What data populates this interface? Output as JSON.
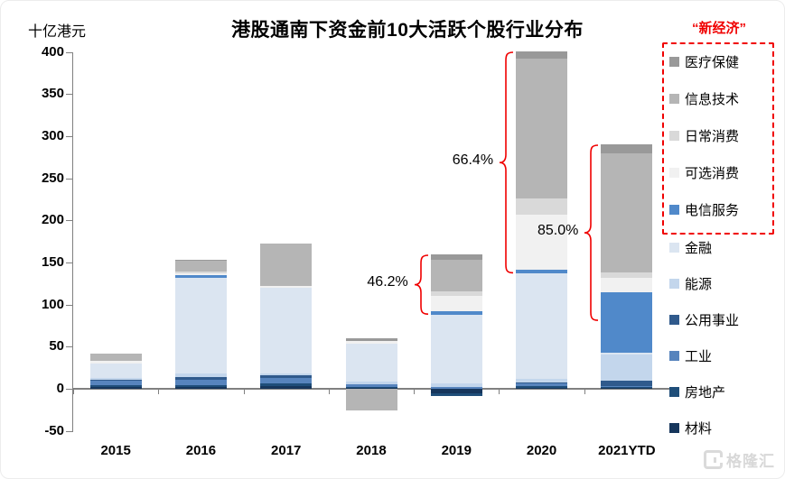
{
  "header": {
    "title": "港股通南下资金前10大活跃个股行业分布",
    "unit_label": "十亿港元"
  },
  "legend": {
    "new_economy_label": "“新经济”",
    "new_economy_items": [
      "医疗保健",
      "信息技术",
      "日常消费",
      "可选消费",
      "电信服务"
    ],
    "other_items": [
      "金融",
      "能源",
      "公用事业",
      "工业",
      "房地产",
      "材料"
    ],
    "accent_red": "#f00000"
  },
  "watermark": {
    "text": "格隆汇"
  },
  "chart_data": {
    "type": "bar",
    "stacked": true,
    "title": "港股通南下资金前10大活跃个股行业分布",
    "ylabel": "十亿港元",
    "ylim": [
      -50,
      400
    ],
    "ytick_step": 50,
    "yticks": [
      400,
      350,
      300,
      250,
      200,
      150,
      100,
      50,
      0,
      -50
    ],
    "grid": false,
    "legend_position": "right",
    "categories": [
      "2015",
      "2016",
      "2017",
      "2018",
      "2019",
      "2020",
      "2021YTD"
    ],
    "series": [
      {
        "name": "医疗保健",
        "color": "#999999",
        "values": [
          0,
          1,
          0,
          3,
          7,
          9,
          10
        ]
      },
      {
        "name": "信息技术",
        "color": "#b5b5b5",
        "values": [
          9,
          13,
          51,
          -26,
          37,
          166,
          142
        ]
      },
      {
        "name": "日常消费",
        "color": "#d9d9d9",
        "values": [
          0,
          2,
          0,
          0,
          6,
          19,
          6
        ]
      },
      {
        "name": "可选消费",
        "color": "#f1f1f1",
        "values": [
          3,
          2,
          2,
          3,
          18,
          66,
          17
        ]
      },
      {
        "name": "电信服务",
        "color": "#5089ca",
        "values": [
          0,
          3,
          0,
          0,
          4,
          4,
          72
        ]
      },
      {
        "name": "金融",
        "color": "#dbe5f1",
        "values": [
          17,
          114,
          102,
          45,
          82,
          125,
          2
        ]
      },
      {
        "name": "能源",
        "color": "#c3d6ec",
        "values": [
          2,
          4,
          2,
          4,
          4,
          5,
          31
        ]
      },
      {
        "name": "公用事业",
        "color": "#305a8c",
        "values": [
          1,
          3,
          3,
          0,
          0,
          1,
          7
        ]
      },
      {
        "name": "工业",
        "color": "#5784bd",
        "values": [
          6,
          7,
          7,
          3,
          2,
          3,
          1
        ]
      },
      {
        "name": "房地产",
        "color": "#1f4e79",
        "values": [
          2,
          2,
          3,
          1,
          -4,
          2,
          1
        ]
      },
      {
        "name": "材料",
        "color": "#16365c",
        "values": [
          2,
          2,
          3,
          1,
          -5,
          1,
          1
        ]
      }
    ],
    "annotations": [
      {
        "label": "46.2%",
        "category": "2019",
        "from_value": 160,
        "to_value": 88
      },
      {
        "label": "66.4%",
        "category": "2020",
        "from_value": 401,
        "to_value": 137
      },
      {
        "label": "85.0%",
        "category": "2021YTD",
        "from_value": 290,
        "to_value": 80
      }
    ]
  }
}
